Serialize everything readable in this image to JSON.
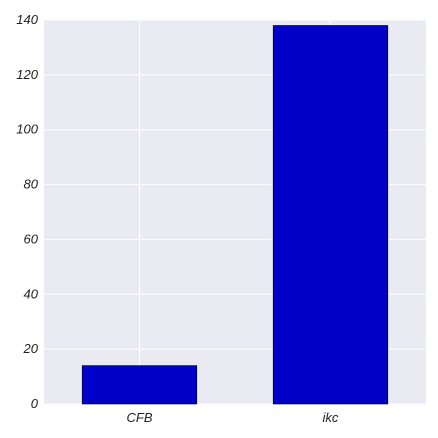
{
  "chart_data": {
    "type": "bar",
    "categories": [
      "CFB",
      "ikc"
    ],
    "values": [
      14,
      138
    ],
    "title": "",
    "xlabel": "",
    "ylabel": "",
    "ylim": [
      0,
      140
    ],
    "yticks": [
      0,
      20,
      40,
      60,
      80,
      100,
      120,
      140
    ],
    "grid": true,
    "bar_color": "#0000c8",
    "plot_background": "#eaeaf2",
    "grid_color": "#ffffff"
  }
}
